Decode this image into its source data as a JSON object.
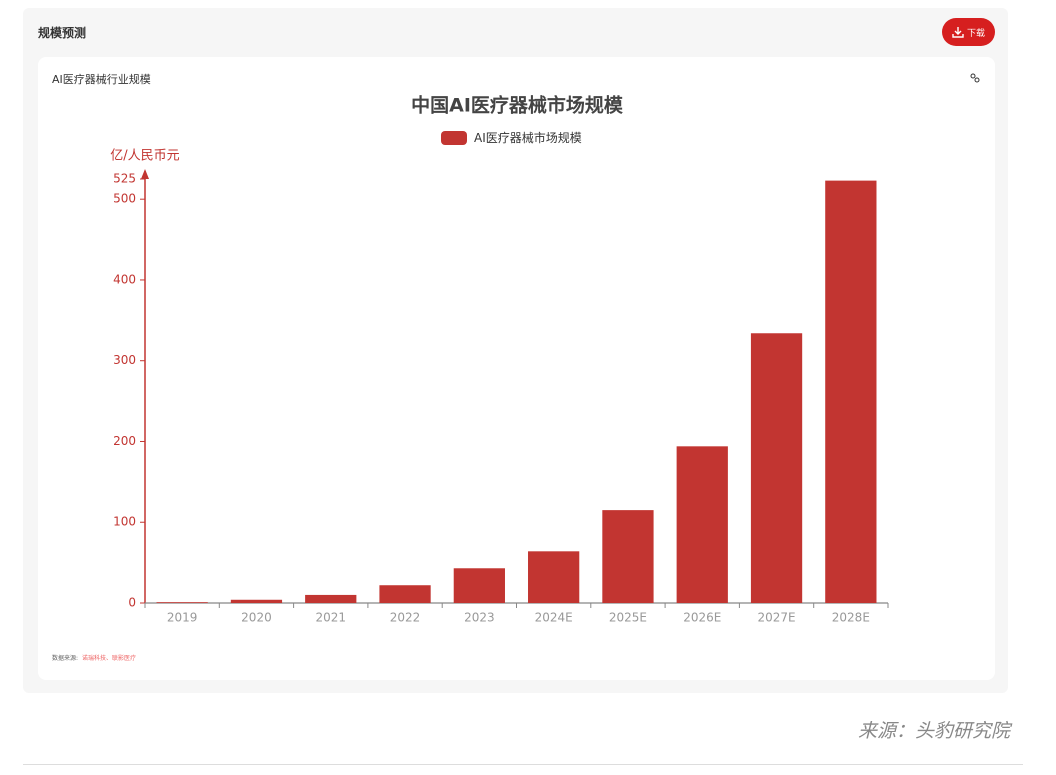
{
  "header": {
    "title": "规模预测",
    "button": "下载"
  },
  "card": {
    "title": "AI医疗器械行业规模",
    "source_label": "数据来源:",
    "source_names": "诺瑞科技、联影医疗"
  },
  "footer": {
    "source": "来源：头豹研究院"
  },
  "chart_data": {
    "type": "bar",
    "title": "中国AI医疗器械市场规模",
    "y_label": "亿/人民币元",
    "categories": [
      "2019",
      "2020",
      "2021",
      "2022",
      "2023",
      "2024E",
      "2025E",
      "2026E",
      "2027E",
      "2028E"
    ],
    "series": [
      {
        "name": "AI医疗器械市场规模",
        "color": "#c23531",
        "values": [
          1,
          4,
          10,
          22,
          43,
          64,
          115,
          194,
          334,
          523
        ]
      }
    ],
    "ylim": [
      0,
      525
    ],
    "yticks": [
      0,
      100,
      200,
      300,
      400,
      500,
      525
    ],
    "grid": false
  }
}
